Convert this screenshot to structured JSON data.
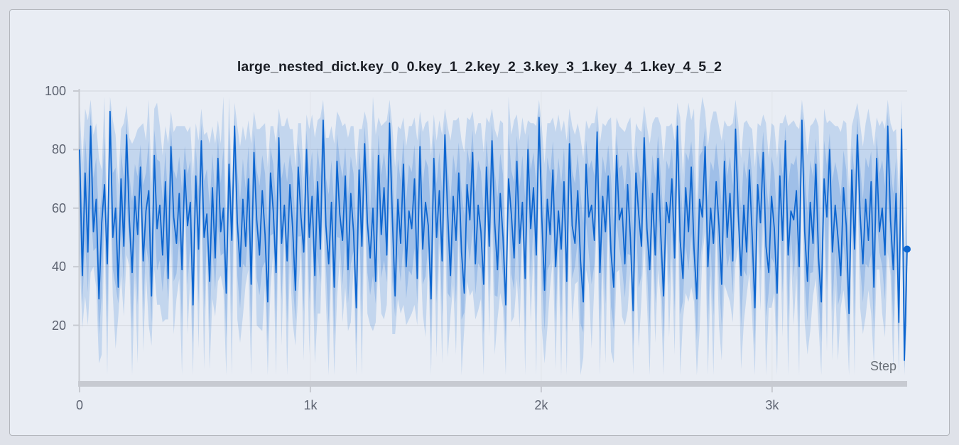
{
  "colors": {
    "background": "#dfe2e9",
    "panel_background": "#e9edf4",
    "panel_border": "#b3b6bc",
    "grid": "#d6dae1",
    "axis": "#c7cad1",
    "tick_text": "#5d6370",
    "title_text": "#1b1e25",
    "step_text": "#6a7078",
    "accent": "#0d66d0"
  },
  "chart_data": {
    "type": "line",
    "title": "large_nested_dict.key_0_0.key_1_2.key_2_3.key_3_1.key_4_1.key_4_5_2",
    "xlabel": "Step",
    "ylabel": "",
    "x_range": [
      0,
      3585
    ],
    "ylim": [
      0,
      100
    ],
    "grid": true,
    "legend_position": "none",
    "xticks": [
      {
        "value": 0,
        "label": "0"
      },
      {
        "value": 1000,
        "label": "1k"
      },
      {
        "value": 2000,
        "label": "2k"
      },
      {
        "value": 3000,
        "label": "3k"
      }
    ],
    "yticks": [
      20,
      40,
      60,
      80,
      100
    ],
    "band_opacity_outer": 0.17,
    "band_opacity_inner": 0.2,
    "end_marker": true,
    "series": [
      {
        "name": "large_nested_dict.key_0_0.key_1_2.key_2_3.key_3_1.key_4_1.key_4_5_2",
        "color": "#0d66d0",
        "mean": [
          80,
          37,
          72,
          45,
          88,
          52,
          63,
          29,
          55,
          68,
          41,
          93,
          50,
          60,
          33,
          70,
          47,
          85,
          56,
          38,
          64,
          51,
          74,
          42,
          59,
          66,
          30,
          78,
          53,
          61,
          44,
          69,
          36,
          81,
          57,
          48,
          65,
          39,
          73,
          54,
          62,
          27,
          71,
          46,
          83,
          50,
          58,
          35,
          67,
          43,
          77,
          52,
          60,
          31,
          75,
          49,
          88,
          55,
          40,
          63,
          47,
          70,
          34,
          79,
          56,
          44,
          66,
          51,
          28,
          72,
          59,
          38,
          84,
          48,
          61,
          42,
          68,
          53,
          32,
          74,
          57,
          45,
          80,
          50,
          64,
          37,
          69,
          46,
          90,
          54,
          41,
          62,
          33,
          76,
          58,
          49,
          71,
          39,
          65,
          52,
          26,
          73,
          47,
          82,
          55,
          43,
          60,
          35,
          78,
          51,
          67,
          44,
          89,
          57,
          30,
          63,
          48,
          75,
          40,
          59,
          53,
          70,
          36,
          81,
          46,
          62,
          54,
          29,
          77,
          50,
          66,
          42,
          85,
          58,
          37,
          64,
          49,
          72,
          45,
          31,
          68,
          56,
          79,
          41,
          61,
          52,
          34,
          74,
          47,
          83,
          55,
          39,
          65,
          50,
          27,
          70,
          58,
          43,
          76,
          48,
          62,
          36,
          80,
          53,
          67,
          44,
          91,
          57,
          32,
          63,
          51,
          73,
          40,
          59,
          46,
          69,
          35,
          82,
          54,
          48,
          66,
          42,
          28,
          75,
          57,
          61,
          49,
          86,
          38,
          64,
          52,
          71,
          45,
          33,
          78,
          56,
          60,
          41,
          68,
          50,
          25,
          72,
          58,
          47,
          84,
          53,
          39,
          65,
          44,
          77,
          51,
          30,
          62,
          55,
          70,
          43,
          88,
          49,
          36,
          67,
          52,
          74,
          46,
          29,
          63,
          57,
          81,
          40,
          60,
          48,
          69,
          54,
          34,
          76,
          50,
          65,
          42,
          87,
          58,
          37,
          61,
          45,
          73,
          51,
          26,
          68,
          55,
          79,
          47,
          38,
          64,
          53,
          31,
          71,
          49,
          83,
          44,
          59,
          56,
          66,
          40,
          90,
          52,
          35,
          62,
          48,
          75,
          43,
          28,
          70,
          57,
          80,
          45,
          61,
          50,
          37,
          67,
          54,
          24,
          73,
          46,
          85,
          58,
          41,
          63,
          49,
          69,
          33,
          77,
          52,
          60,
          44,
          88,
          56,
          39,
          65,
          21,
          87,
          8,
          46
        ],
        "band_lo_offset": [
          35,
          18,
          42,
          25,
          50,
          12,
          30,
          22,
          45,
          15,
          38,
          28,
          20,
          48,
          10,
          33,
          24,
          41,
          16,
          36,
          27,
          44,
          13,
          31,
          21,
          46,
          17,
          39,
          26,
          34,
          23,
          47,
          14,
          32,
          40,
          19,
          29,
          43,
          11,
          37,
          25,
          49,
          16,
          34,
          22,
          45,
          12,
          30,
          38,
          20,
          42,
          15,
          28,
          35,
          24,
          46,
          18,
          33,
          26,
          40,
          13,
          31,
          44,
          21,
          36,
          25,
          48,
          17,
          29,
          39,
          14,
          42,
          23,
          35,
          10,
          46,
          27,
          32,
          19,
          43,
          12,
          37,
          24,
          40,
          16,
          30,
          45,
          22,
          34,
          26,
          41,
          18,
          33,
          47,
          15,
          28,
          38,
          21,
          44,
          12,
          35,
          26,
          49,
          19,
          31,
          23,
          42,
          14,
          36,
          27,
          45,
          17,
          30,
          40,
          13,
          34,
          24,
          48,
          20,
          37,
          29,
          43,
          16,
          32,
          22,
          46,
          11,
          38,
          25,
          41,
          18,
          35,
          27,
          49,
          14,
          30,
          39,
          21,
          44,
          12,
          33,
          26,
          47,
          19,
          36,
          23,
          42,
          15,
          31,
          28,
          45,
          17,
          34,
          24,
          48,
          13,
          37,
          20,
          40,
          29,
          11,
          43,
          26,
          32,
          21,
          46,
          16,
          38,
          25,
          44,
          18,
          30,
          35,
          12,
          47,
          22,
          39,
          27,
          33,
          14,
          31,
          42,
          19,
          36,
          23,
          49,
          15,
          28,
          41,
          24,
          45,
          13,
          34,
          26,
          40,
          17,
          37,
          21,
          43,
          11,
          32,
          29,
          46,
          18,
          35,
          25,
          48,
          16,
          30,
          38,
          22,
          44,
          12,
          39,
          27,
          33,
          20,
          47,
          14,
          36,
          24,
          41,
          18,
          31,
          45,
          13,
          29,
          38,
          23,
          49,
          16,
          34,
          26,
          42,
          19,
          37,
          21,
          46,
          11,
          32,
          40,
          15,
          35,
          28,
          43,
          17,
          30,
          24,
          48,
          12,
          38,
          22,
          45,
          19,
          33,
          26,
          41,
          14,
          36,
          29,
          47,
          13,
          31,
          25,
          44,
          18,
          39,
          23,
          34,
          16,
          46,
          20,
          37,
          27,
          42,
          11,
          35,
          30,
          44,
          21,
          48,
          15,
          32,
          24,
          40,
          17,
          45,
          26,
          38,
          13,
          36,
          28,
          43,
          19,
          34,
          22,
          47,
          16,
          5,
          25
        ],
        "band_hi_offset": [
          15,
          38,
          22,
          45,
          9,
          33,
          26,
          48,
          18,
          30,
          12,
          5,
          40,
          25,
          35,
          17,
          42,
          10,
          28,
          44,
          20,
          36,
          14,
          47,
          24,
          31,
          38,
          16,
          43,
          27,
          34,
          19,
          46,
          12,
          29,
          40,
          23,
          49,
          15,
          32,
          26,
          44,
          18,
          37,
          11,
          35,
          28,
          47,
          21,
          39,
          13,
          30,
          42,
          24,
          45,
          17,
          8,
          33,
          41,
          25,
          36,
          20,
          48,
          14,
          31,
          43,
          22,
          38,
          46,
          16,
          29,
          44,
          10,
          40,
          27,
          49,
          19,
          34,
          42,
          15,
          32,
          25,
          12,
          37,
          28,
          47,
          21,
          45,
          7,
          30,
          43,
          26,
          49,
          17,
          33,
          39,
          18,
          45,
          23,
          36,
          48,
          14,
          40,
          11,
          34,
          28,
          42,
          50,
          13,
          37,
          22,
          46,
          8,
          31,
          44,
          25,
          39,
          16,
          41,
          29,
          35,
          21,
          47,
          12,
          40,
          27,
          36,
          49,
          15,
          33,
          24,
          43,
          9,
          30,
          46,
          26,
          41,
          19,
          38,
          48,
          23,
          34,
          14,
          44,
          28,
          37,
          45,
          17,
          42,
          11,
          32,
          45,
          25,
          39,
          13,
          41,
          27,
          47,
          16,
          35,
          29,
          49,
          10,
          36,
          22,
          44,
          6,
          31,
          43,
          26,
          38,
          18,
          46,
          33,
          40,
          21,
          48,
          12,
          34,
          37,
          23,
          42,
          49,
          15,
          30,
          28,
          40,
          9,
          44,
          25,
          36,
          19,
          46,
          38,
          13,
          32,
          27,
          45,
          21,
          41,
          48,
          17,
          29,
          39,
          11,
          35,
          43,
          24,
          47,
          14,
          37,
          46,
          26,
          33,
          19,
          40,
          8,
          42,
          35,
          22,
          44,
          16,
          48,
          30,
          27,
          43,
          12,
          41,
          29,
          45,
          24,
          34,
          49,
          14,
          38,
          23,
          47,
          10,
          31,
          40,
          28,
          45,
          15,
          36,
          48,
          21,
          33,
          13,
          42,
          39,
          25,
          35,
          46,
          18,
          40,
          9,
          44,
          30,
          34,
          22,
          47,
          7,
          37,
          43,
          26,
          41,
          16,
          45,
          29,
          24,
          32,
          10,
          44,
          27,
          38,
          49,
          23,
          35,
          42,
          15,
          46,
          11,
          31,
          40,
          26,
          45,
          19,
          48,
          14,
          36,
          30,
          43,
          9,
          33,
          47,
          22,
          44,
          10,
          38,
          25
        ]
      }
    ]
  }
}
